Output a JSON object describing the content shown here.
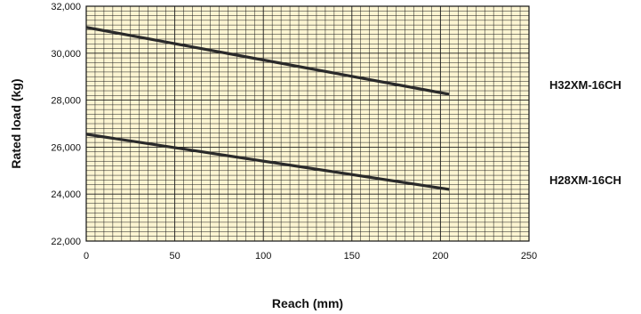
{
  "chart_data": {
    "type": "line",
    "xlabel": "Reach (mm)",
    "ylabel": "Rated load (kg)",
    "xlim": [
      0,
      250
    ],
    "ylim": [
      22000,
      32000
    ],
    "x_ticks": [
      0,
      50,
      100,
      150,
      200,
      250
    ],
    "x_tick_labels": [
      "0",
      "50",
      "100",
      "150",
      "200",
      "250"
    ],
    "y_ticks": [
      22000,
      24000,
      26000,
      28000,
      30000,
      32000
    ],
    "y_tick_labels": [
      "22,000",
      "24,000",
      "26,000",
      "28,000",
      "30,000",
      "32,000"
    ],
    "grid": true,
    "background_color": "#fcf5d2",
    "grid_color": "#1a1a1a",
    "line_color": "#2a2a2a",
    "series": [
      {
        "name": "H32XM-16CH",
        "x": [
          0,
          205
        ],
        "y": [
          31100,
          28250
        ]
      },
      {
        "name": "H28XM-16CH",
        "x": [
          0,
          205
        ],
        "y": [
          26550,
          24200
        ]
      }
    ]
  }
}
